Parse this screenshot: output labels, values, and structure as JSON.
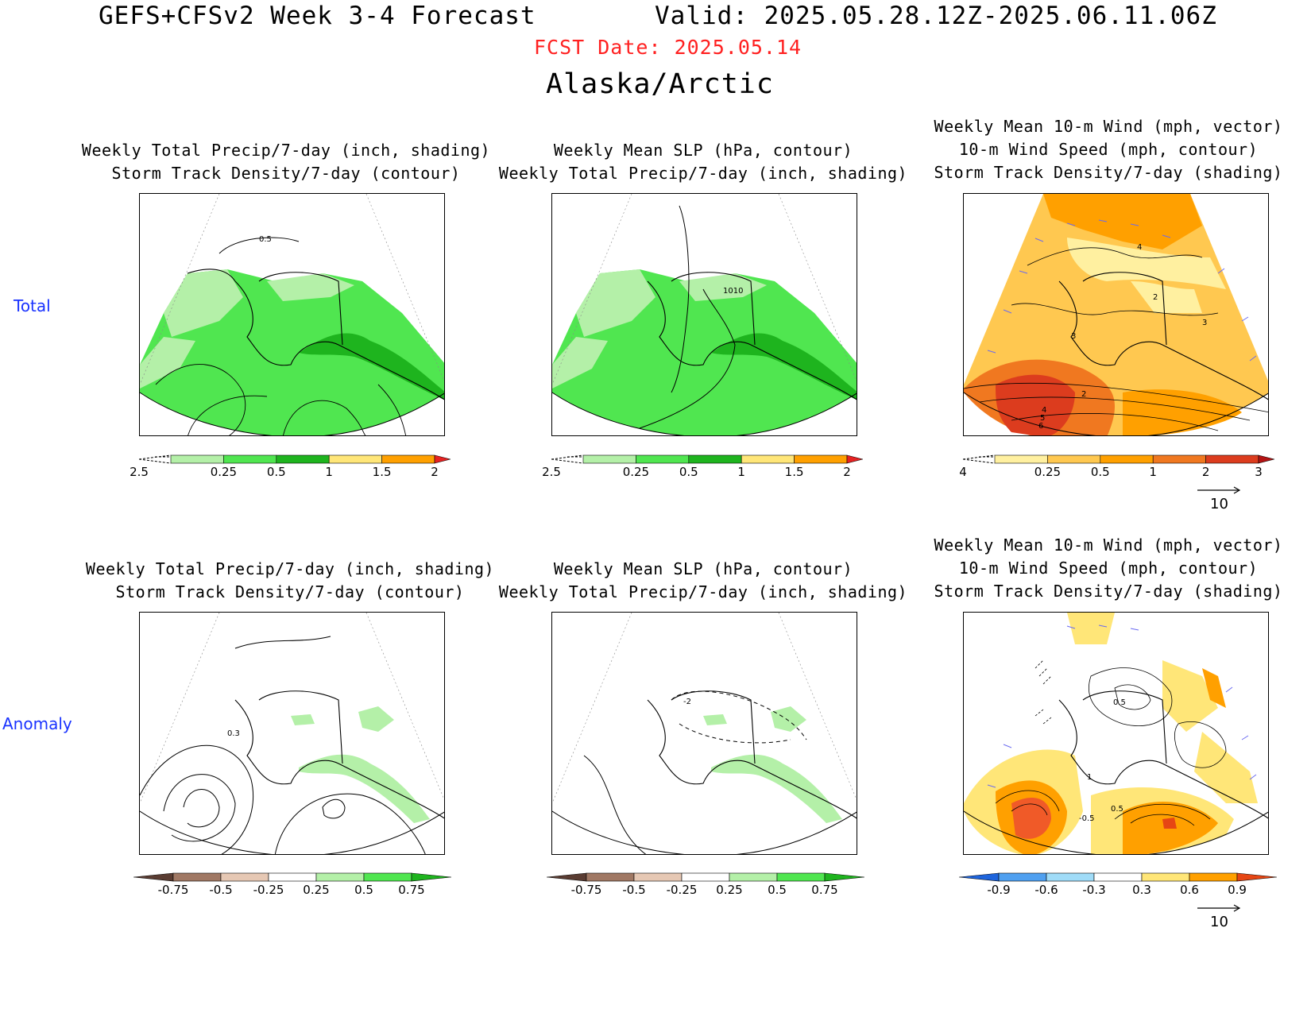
{
  "header": {
    "title": "GEFS+CFSv2 Week 3-4 Forecast",
    "valid": "Valid: 2025.05.28.12Z-2025.06.11.06Z",
    "fcst_date": "FCST Date: 2025.05.14",
    "region": "Alaska/Arctic"
  },
  "rows": {
    "total": "Total",
    "anomaly": "Anomaly"
  },
  "panels": {
    "p1": {
      "line1": "Weekly Total Precip/7-day (inch, shading)",
      "line2": "Storm Track Density/7-day (contour)"
    },
    "p2": {
      "line1": "Weekly Mean SLP (hPa, contour)",
      "line2": "Weekly Total Precip/7-day (inch, shading)"
    },
    "p3": {
      "line0": "Weekly Mean 10-m Wind (mph, vector)",
      "line1": "10-m Wind Speed (mph, contour)",
      "line2": "Storm Track Density/7-day (shading)"
    },
    "p4": {
      "line1": "Weekly Total Precip/7-day (inch, shading)",
      "line2": "Storm Track Density/7-day (contour)"
    },
    "p5": {
      "line1": "Weekly Mean SLP (hPa, contour)",
      "line2": "Weekly Total Precip/7-day (inch, shading)"
    },
    "p6": {
      "line0": "Weekly Mean 10-m Wind (mph, vector)",
      "line1": "10-m Wind Speed (mph, contour)",
      "line2": "Storm Track Density/7-day (shading)"
    }
  },
  "contour_labels": {
    "p1": "0.5",
    "p2": "1010",
    "p3a": "4",
    "p3b": "2",
    "p3c": "3",
    "p3d": "3",
    "p3e": "2",
    "p3f": "4",
    "p3g": "5",
    "p3h": "6",
    "p4": "0.3",
    "p5": "-2",
    "p6a": "0.5",
    "p6b": "1",
    "p6c": "0.5",
    "p6d": "-0.5"
  },
  "colorbars": {
    "precip_total": {
      "labels": [
        "0.25",
        "0.5",
        "1",
        "1.5",
        "2",
        "2.5"
      ],
      "colors": [
        "#b4f0a8",
        "#50e650",
        "#1eb41e",
        "#ffe678",
        "#ffa000",
        "#e62222"
      ]
    },
    "storm_total": {
      "labels": [
        "0.25",
        "0.5",
        "1",
        "2",
        "3",
        "4"
      ],
      "colors": [
        "#fff0a0",
        "#ffc850",
        "#ffa000",
        "#f07820",
        "#dc3c1e",
        "#b41414"
      ]
    },
    "precip_anom": {
      "labels": [
        "-0.75",
        "-0.5",
        "-0.25",
        "0.25",
        "0.5",
        "0.75"
      ],
      "colors": [
        "#5a3c32",
        "#a07864",
        "#e6c8b4",
        "#ffffff",
        "#b4f0a8",
        "#50e650",
        "#1eb41e"
      ]
    },
    "storm_anom": {
      "labels": [
        "-0.9",
        "-0.6",
        "-0.3",
        "0.3",
        "0.6",
        "0.9"
      ],
      "colors": [
        "#1e64dc",
        "#50a0f0",
        "#a0dcf8",
        "#ffffff",
        "#ffe678",
        "#ffa000",
        "#e64614"
      ]
    }
  },
  "vector_ref": "10"
}
